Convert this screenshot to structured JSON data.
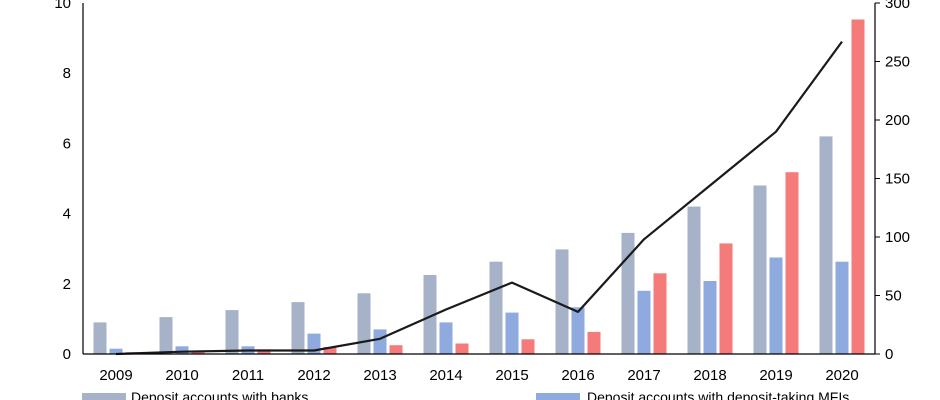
{
  "chart_data": {
    "type": "bar",
    "categories": [
      "2009",
      "2010",
      "2011",
      "2012",
      "2013",
      "2014",
      "2015",
      "2016",
      "2017",
      "2018",
      "2019",
      "2020"
    ],
    "series": [
      {
        "name": "Deposit accounts with banks",
        "axis": "left",
        "kind": "bar",
        "color": "#a6b2c8",
        "values": [
          0.9,
          1.05,
          1.25,
          1.48,
          1.73,
          2.25,
          2.63,
          2.98,
          3.45,
          4.2,
          4.8,
          6.2
        ]
      },
      {
        "name": "Deposit accounts with deposit-taking MFIs",
        "axis": "left",
        "kind": "bar",
        "color": "#8eaadf",
        "values": [
          0.15,
          0.22,
          0.22,
          0.58,
          0.7,
          0.9,
          1.18,
          1.33,
          1.8,
          2.08,
          2.75,
          2.63
        ]
      },
      {
        "name": "",
        "axis": "left",
        "kind": "bar",
        "color": "#f57b7b",
        "values": [
          0.05,
          0.1,
          0.13,
          0.2,
          0.25,
          0.3,
          0.42,
          0.63,
          2.3,
          3.15,
          5.18,
          9.53
        ]
      },
      {
        "name": "",
        "axis": "right",
        "kind": "line",
        "color": "#1a1a1a",
        "values": [
          0,
          2,
          3,
          3,
          13,
          38,
          61,
          36,
          98,
          144,
          190,
          267
        ]
      }
    ],
    "yleft": {
      "min": 0,
      "max": 10,
      "ticks": [
        "0",
        "2",
        "4",
        "6",
        "8",
        "10"
      ]
    },
    "yright": {
      "min": 0,
      "max": 300,
      "ticks": [
        "0",
        "50",
        "100",
        "150",
        "200",
        "250",
        "300"
      ]
    },
    "legend_labels": [
      "Deposit accounts with banks",
      "Deposit accounts with deposit-taking MFIs"
    ],
    "grid": false,
    "legend_position": "bottom"
  }
}
